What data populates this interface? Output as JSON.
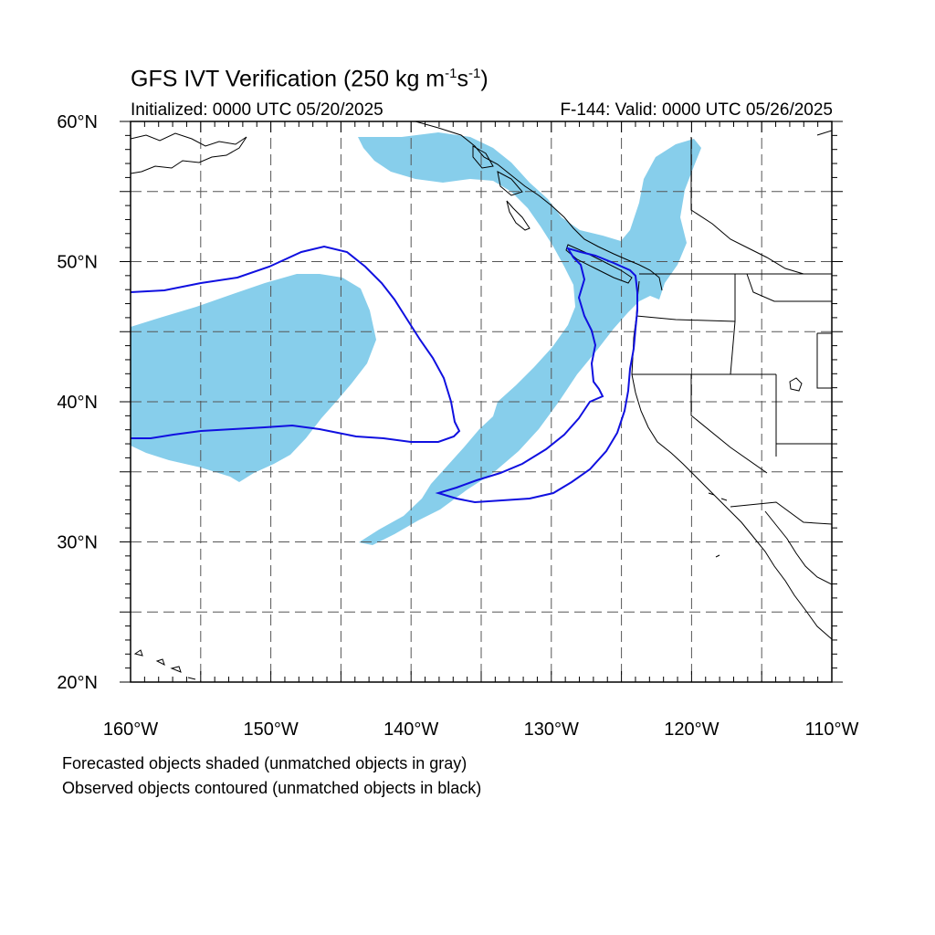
{
  "title": {
    "main": "GFS IVT Verification (250 kg m",
    "exp1": "-1",
    "mid": "s",
    "exp2": "-1",
    "end": ")"
  },
  "subtitle": {
    "left": "Initialized: 0000 UTC 05/20/2025",
    "right": "F-144: Valid: 0000 UTC 05/26/2025"
  },
  "axes": {
    "lat_ticks": [
      {
        "value": 60,
        "label": "60°N"
      },
      {
        "value": 50,
        "label": "50°N"
      },
      {
        "value": 40,
        "label": "40°N"
      },
      {
        "value": 30,
        "label": "30°N"
      },
      {
        "value": 20,
        "label": "20°N"
      }
    ],
    "lon_ticks": [
      {
        "value": -160,
        "label": "160°W"
      },
      {
        "value": -150,
        "label": "150°W"
      },
      {
        "value": -140,
        "label": "140°W"
      },
      {
        "value": -130,
        "label": "130°W"
      },
      {
        "value": -120,
        "label": "120°W"
      },
      {
        "value": -110,
        "label": "110°W"
      }
    ]
  },
  "captions": {
    "line1": "Forecasted objects shaded (unmatched objects in gray)",
    "line2": "Observed objects contoured (unmatched objects in black)"
  },
  "colors": {
    "forecast_fill": "#87ceeb",
    "observed_contour": "#1010e0",
    "coastline": "#000000",
    "grid": "#555555"
  }
}
